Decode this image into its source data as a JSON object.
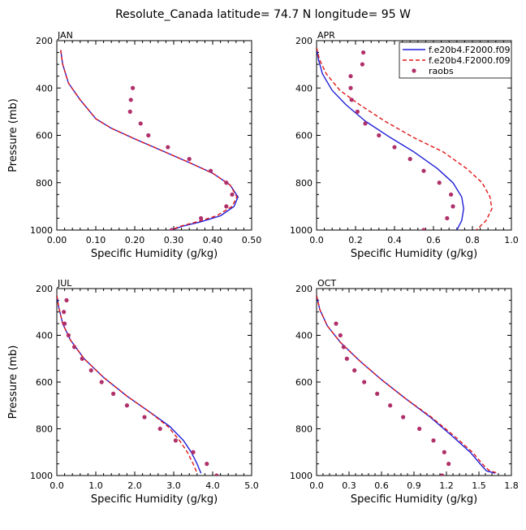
{
  "suptitle": "Resolute_Canada  latitude= 74.7 N longitude= 95 W",
  "colors": {
    "model1": "#1f1fd9",
    "model2": "#e01616",
    "obs": "#b0306a",
    "frame": "#000000"
  },
  "legend": {
    "placement": "top-right of APR panel",
    "entries": [
      {
        "label": "f.e20b4.F2000.f09",
        "style": "solid",
        "color": "#1f1fd9"
      },
      {
        "label": "f.e20b4.F2000.f09",
        "style": "dashed",
        "color": "#e01616"
      },
      {
        "label": "raobs",
        "style": "dot",
        "color": "#b0306a"
      }
    ]
  },
  "chart_data": [
    {
      "type": "line",
      "title": "JAN",
      "xlabel": "Specific Humidity (g/kg)",
      "ylabel": "Pressure (mb)",
      "xlim": [
        0,
        0.5
      ],
      "ylim": [
        1000,
        200
      ],
      "xticks": [
        "0.00",
        "0.10",
        "0.20",
        "0.30",
        "0.40",
        "0.50"
      ],
      "xtick_values": [
        0,
        0.1,
        0.2,
        0.3,
        0.4,
        0.5
      ],
      "yticks": [
        "200",
        "400",
        "600",
        "800",
        "1000"
      ],
      "ytick_values": [
        200,
        400,
        600,
        800,
        1000
      ],
      "series": [
        {
          "name": "f.e20b4.F2000.f09",
          "style": "solid",
          "color": "#1f1fd9",
          "x": [
            0.01,
            0.015,
            0.03,
            0.06,
            0.1,
            0.14,
            0.2,
            0.27,
            0.34,
            0.4,
            0.445,
            0.465,
            0.455,
            0.42,
            0.37,
            0.32,
            0.295
          ],
          "y": [
            240,
            300,
            380,
            450,
            530,
            570,
            615,
            665,
            715,
            760,
            810,
            860,
            900,
            940,
            965,
            985,
            1000
          ]
        },
        {
          "name": "f.e20b4.F2000.f09",
          "style": "dashed",
          "color": "#e01616",
          "x": [
            0.01,
            0.015,
            0.03,
            0.06,
            0.1,
            0.14,
            0.2,
            0.27,
            0.34,
            0.4,
            0.445,
            0.462,
            0.45,
            0.41,
            0.36,
            0.315,
            0.295
          ],
          "y": [
            240,
            300,
            380,
            450,
            530,
            570,
            615,
            665,
            715,
            760,
            810,
            860,
            900,
            940,
            965,
            985,
            1000
          ]
        },
        {
          "name": "raobs",
          "style": "dot",
          "color": "#b0306a",
          "x": [
            0.195,
            0.19,
            0.188,
            0.215,
            0.235,
            0.285,
            0.34,
            0.395,
            0.435,
            0.45,
            0.435,
            0.37,
            0.295
          ],
          "y": [
            400,
            450,
            500,
            550,
            600,
            650,
            700,
            750,
            800,
            850,
            900,
            950,
            1000
          ]
        }
      ]
    },
    {
      "type": "line",
      "title": "APR",
      "xlabel": "Specific Humidity (g/kg)",
      "ylabel": "",
      "xlim": [
        0,
        1.0
      ],
      "ylim": [
        1000,
        200
      ],
      "xticks": [
        "0.0",
        "0.2",
        "0.4",
        "0.6",
        "0.8",
        "1.0"
      ],
      "xtick_values": [
        0,
        0.2,
        0.4,
        0.6,
        0.8,
        1.0
      ],
      "yticks": [
        "200",
        "400",
        "600",
        "800",
        "1000"
      ],
      "ytick_values": [
        200,
        400,
        600,
        800,
        1000
      ],
      "series": [
        {
          "name": "f.e20b4.F2000.f09",
          "style": "solid",
          "color": "#1f1fd9",
          "x": [
            0.0,
            0.01,
            0.03,
            0.08,
            0.15,
            0.25,
            0.38,
            0.5,
            0.62,
            0.7,
            0.745,
            0.755,
            0.745,
            0.72
          ],
          "y": [
            230,
            280,
            340,
            410,
            470,
            540,
            610,
            670,
            740,
            800,
            860,
            910,
            960,
            1000
          ]
        },
        {
          "name": "f.e20b4.F2000.f09",
          "style": "dashed",
          "color": "#e01616",
          "x": [
            0.0,
            0.015,
            0.05,
            0.12,
            0.22,
            0.35,
            0.5,
            0.65,
            0.77,
            0.85,
            0.89,
            0.9,
            0.87,
            0.82
          ],
          "y": [
            230,
            280,
            340,
            410,
            470,
            540,
            610,
            670,
            740,
            800,
            860,
            910,
            960,
            1000
          ]
        },
        {
          "name": "raobs",
          "style": "dot",
          "color": "#b0306a",
          "x": [
            0.24,
            0.235,
            0.175,
            0.175,
            0.18,
            0.21,
            0.25,
            0.32,
            0.4,
            0.48,
            0.55,
            0.63,
            0.69,
            0.7,
            0.67,
            0.55
          ],
          "y": [
            250,
            300,
            350,
            400,
            450,
            500,
            550,
            600,
            650,
            700,
            750,
            800,
            850,
            900,
            950,
            1000
          ]
        }
      ]
    },
    {
      "type": "line",
      "title": "JUL",
      "xlabel": "Specific Humidity (g/kg)",
      "ylabel": "Pressure (mb)",
      "xlim": [
        0,
        5.0
      ],
      "ylim": [
        1000,
        200
      ],
      "xticks": [
        "0.0",
        "1.0",
        "2.0",
        "3.0",
        "4.0",
        "5.0"
      ],
      "xtick_values": [
        0,
        1,
        2,
        3,
        4,
        5
      ],
      "yticks": [
        "200",
        "400",
        "600",
        "800",
        "1000"
      ],
      "ytick_values": [
        200,
        400,
        600,
        800,
        1000
      ],
      "series": [
        {
          "name": "f.e20b4.F2000.f09",
          "style": "solid",
          "color": "#1f1fd9",
          "x": [
            0.0,
            0.05,
            0.15,
            0.35,
            0.7,
            1.2,
            1.8,
            2.4,
            2.9,
            3.25,
            3.45,
            3.6,
            3.7
          ],
          "y": [
            230,
            280,
            350,
            420,
            500,
            580,
            660,
            730,
            790,
            850,
            900,
            950,
            990
          ]
        },
        {
          "name": "f.e20b4.F2000.f09",
          "style": "dashed",
          "color": "#e01616",
          "x": [
            0.0,
            0.05,
            0.15,
            0.35,
            0.7,
            1.2,
            1.8,
            2.4,
            2.85,
            3.15,
            3.35,
            3.5,
            3.6
          ],
          "y": [
            230,
            280,
            350,
            420,
            500,
            580,
            660,
            730,
            790,
            850,
            900,
            950,
            990
          ]
        },
        {
          "name": "raobs",
          "style": "dot",
          "color": "#b0306a",
          "x": [
            0.25,
            0.18,
            0.2,
            0.3,
            0.45,
            0.65,
            0.88,
            1.15,
            1.45,
            1.8,
            2.25,
            2.65,
            3.05,
            3.5,
            3.85,
            4.1
          ],
          "y": [
            250,
            300,
            350,
            400,
            450,
            500,
            550,
            600,
            650,
            700,
            750,
            800,
            850,
            900,
            950,
            1000
          ]
        }
      ]
    },
    {
      "type": "line",
      "title": "OCT",
      "xlabel": "Specific Humidity (g/kg)",
      "ylabel": "",
      "xlim": [
        0,
        1.8
      ],
      "ylim": [
        1000,
        200
      ],
      "xticks": [
        "0.0",
        "0.3",
        "0.6",
        "0.9",
        "1.2",
        "1.5",
        "1.8"
      ],
      "xtick_values": [
        0,
        0.3,
        0.6,
        0.9,
        1.2,
        1.5,
        1.8
      ],
      "yticks": [
        "200",
        "400",
        "600",
        "800",
        "1000"
      ],
      "ytick_values": [
        200,
        400,
        600,
        800,
        1000
      ],
      "series": [
        {
          "name": "f.e20b4.F2000.f09",
          "style": "solid",
          "color": "#1f1fd9",
          "x": [
            0.0,
            0.03,
            0.1,
            0.22,
            0.4,
            0.6,
            0.82,
            1.05,
            1.25,
            1.42,
            1.53,
            1.57,
            1.65
          ],
          "y": [
            230,
            290,
            360,
            430,
            510,
            590,
            670,
            750,
            830,
            900,
            960,
            980,
            990
          ]
        },
        {
          "name": "f.e20b4.F2000.f09",
          "style": "dashed",
          "color": "#e01616",
          "x": [
            0.0,
            0.03,
            0.1,
            0.22,
            0.4,
            0.6,
            0.82,
            1.06,
            1.27,
            1.44,
            1.55,
            1.6,
            1.68
          ],
          "y": [
            230,
            290,
            360,
            430,
            510,
            590,
            670,
            750,
            830,
            900,
            960,
            980,
            990
          ]
        },
        {
          "name": "raobs",
          "style": "dot",
          "color": "#b0306a",
          "x": [
            0.18,
            0.22,
            0.25,
            0.28,
            0.35,
            0.44,
            0.56,
            0.68,
            0.8,
            0.95,
            1.08,
            1.18,
            1.22,
            1.16
          ],
          "y": [
            350,
            400,
            450,
            500,
            550,
            600,
            650,
            700,
            750,
            800,
            850,
            900,
            950,
            1000
          ]
        }
      ]
    }
  ]
}
